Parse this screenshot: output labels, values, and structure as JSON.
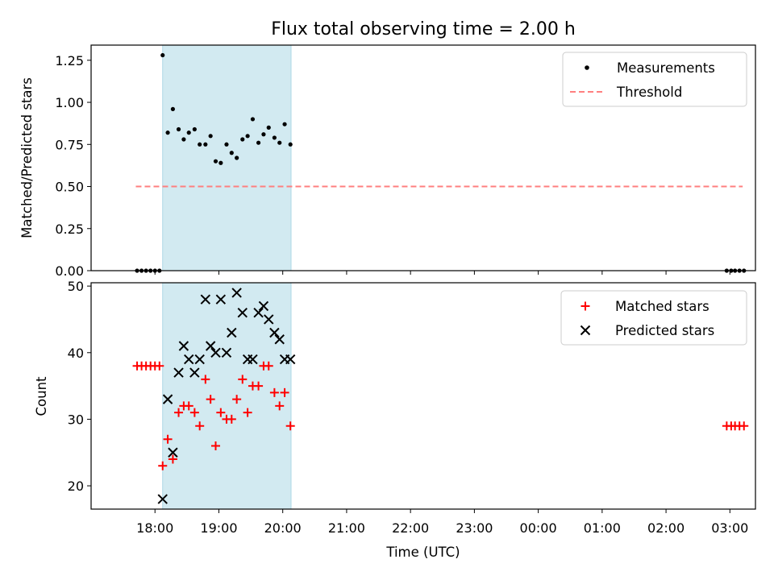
{
  "colors": {
    "band": "#add8e6",
    "threshold": "#ff7f7f",
    "matched": "#ff0000",
    "predicted": "#000000",
    "measurements": "#000000"
  },
  "chart_data": [
    {
      "type": "scatter",
      "title": "Flux total observing time = 2.00 h",
      "xlabel": "",
      "ylabel": "Matched/Predicted stars",
      "ylim": [
        0,
        1.34
      ],
      "yticks": [
        "0.00",
        "0.25",
        "0.50",
        "0.75",
        "1.00",
        "1.25"
      ],
      "x_unit": "hours after 17:00 UTC",
      "shaded_interval": [
        18.12,
        20.13
      ],
      "legend": {
        "placement": "top-right",
        "entries": [
          "Measurements",
          "Threshold"
        ]
      },
      "threshold": {
        "name": "Threshold",
        "value": 0.5,
        "x_range": [
          17.7,
          27.2
        ]
      },
      "series": [
        {
          "name": "Measurements",
          "x": [
            17.72,
            17.79,
            17.86,
            17.93,
            18.0,
            18.07,
            18.12,
            18.2,
            18.28,
            18.37,
            18.45,
            18.53,
            18.62,
            18.7,
            18.79,
            18.87,
            18.95,
            19.03,
            19.12,
            19.2,
            19.28,
            19.37,
            19.45,
            19.53,
            19.62,
            19.7,
            19.78,
            19.87,
            19.95,
            20.03,
            20.12,
            26.95,
            27.02,
            27.08,
            27.15,
            27.22
          ],
          "y": [
            0,
            0,
            0,
            0,
            0,
            0,
            1.28,
            0.82,
            0.96,
            0.84,
            0.78,
            0.82,
            0.84,
            0.75,
            0.75,
            0.8,
            0.65,
            0.64,
            0.75,
            0.7,
            0.67,
            0.78,
            0.8,
            0.9,
            0.76,
            0.81,
            0.85,
            0.79,
            0.76,
            0.87,
            0.75,
            0,
            0,
            0,
            0,
            0
          ]
        }
      ]
    },
    {
      "type": "scatter",
      "title": "",
      "xlabel": "Time (UTC)",
      "ylabel": "Count",
      "ylim": [
        16.5,
        50.5
      ],
      "yticks": [
        "20",
        "30",
        "40",
        "50"
      ],
      "x_unit": "hours after 17:00 UTC",
      "xticks": [
        "18:00",
        "19:00",
        "20:00",
        "21:00",
        "22:00",
        "23:00",
        "00:00",
        "01:00",
        "02:00",
        "03:00"
      ],
      "xlim": [
        17.0,
        27.4
      ],
      "shaded_interval": [
        18.12,
        20.13
      ],
      "legend": {
        "placement": "top-right",
        "entries": [
          "Matched stars",
          "Predicted stars"
        ]
      },
      "series": [
        {
          "name": "Matched stars",
          "x": [
            17.72,
            17.79,
            17.86,
            17.93,
            18.0,
            18.07,
            18.12,
            18.2,
            18.28,
            18.37,
            18.45,
            18.53,
            18.62,
            18.7,
            18.79,
            18.87,
            18.95,
            19.03,
            19.12,
            19.2,
            19.28,
            19.37,
            19.45,
            19.53,
            19.62,
            19.7,
            19.78,
            19.87,
            19.95,
            20.03,
            20.12,
            26.95,
            27.02,
            27.08,
            27.15,
            27.22
          ],
          "y": [
            38,
            38,
            38,
            38,
            38,
            38,
            23,
            27,
            24,
            31,
            32,
            32,
            31,
            29,
            36,
            33,
            26,
            31,
            30,
            30,
            33,
            36,
            31,
            35,
            35,
            38,
            38,
            34,
            32,
            34,
            29,
            29,
            29,
            29,
            29,
            29
          ]
        },
        {
          "name": "Predicted stars",
          "x": [
            18.12,
            18.2,
            18.28,
            18.37,
            18.45,
            18.53,
            18.62,
            18.7,
            18.79,
            18.87,
            18.95,
            19.03,
            19.12,
            19.2,
            19.28,
            19.37,
            19.45,
            19.53,
            19.62,
            19.7,
            19.78,
            19.87,
            19.95,
            20.03,
            20.12
          ],
          "y": [
            18,
            33,
            25,
            37,
            41,
            39,
            37,
            39,
            48,
            41,
            40,
            48,
            40,
            43,
            49,
            46,
            39,
            39,
            46,
            47,
            45,
            43,
            42,
            39,
            39
          ]
        }
      ]
    }
  ]
}
